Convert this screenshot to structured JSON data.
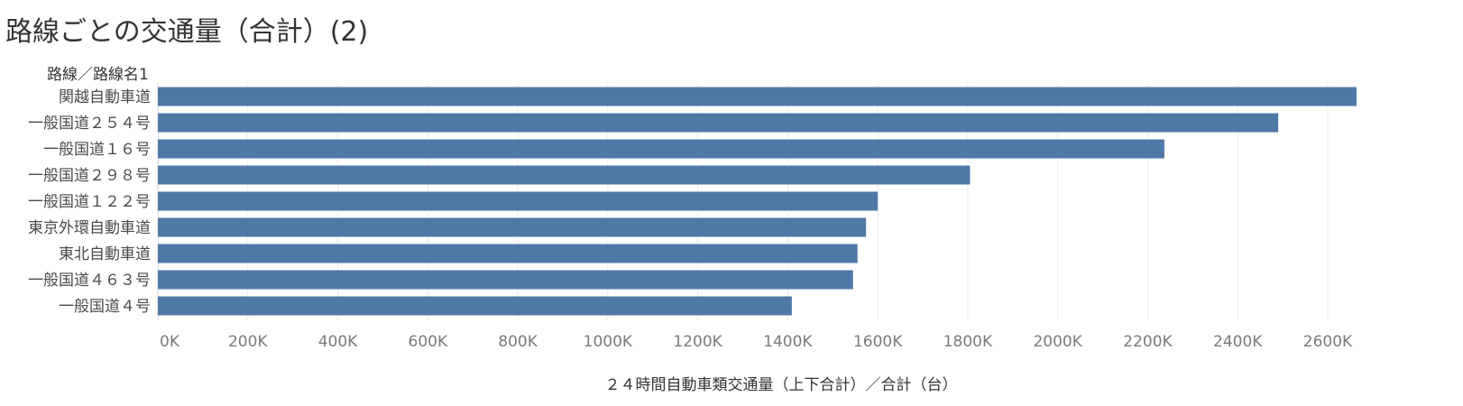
{
  "chart_data": {
    "type": "bar",
    "orientation": "horizontal",
    "title": "路線ごとの交通量（合計）(2)",
    "row_header": "路線／路線名1",
    "xlabel": "２４時間自動車類交通量（上下合計）／合計（台）",
    "categories": [
      "関越自動車道",
      "一般国道２５４号",
      "一般国道１６号",
      "一般国道２９８号",
      "一般国道１２２号",
      "東京外環自動車道",
      "東北自動車道",
      "一般国道４６３号",
      "一般国道４号"
    ],
    "values": [
      2664000,
      2490000,
      2237000,
      1805000,
      1600000,
      1574000,
      1555000,
      1545000,
      1409000
    ],
    "xlim": [
      0,
      2800000
    ],
    "xticks": [
      0,
      200000,
      400000,
      600000,
      800000,
      1000000,
      1200000,
      1400000,
      1600000,
      1800000,
      2000000,
      2200000,
      2400000,
      2600000
    ],
    "xtick_labels": [
      "0K",
      "200K",
      "400K",
      "600K",
      "800K",
      "1000K",
      "1200K",
      "1400K",
      "1600K",
      "1800K",
      "2000K",
      "2200K",
      "2400K",
      "2600K"
    ],
    "grid": true,
    "bar_color": "#4e79a7"
  }
}
